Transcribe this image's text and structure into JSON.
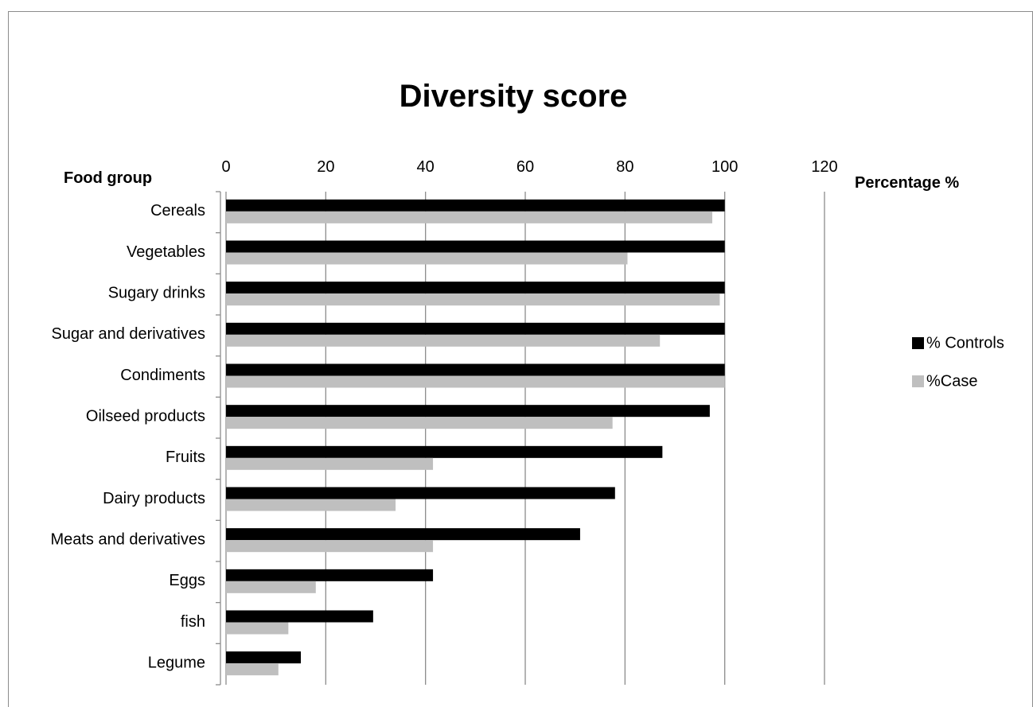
{
  "chart_data": {
    "type": "bar",
    "orientation": "horizontal",
    "title": "Diversity score",
    "xlabel": "Percentage %",
    "ylabel": "Food group",
    "xlim": [
      0,
      120
    ],
    "xticks": [
      0,
      20,
      40,
      60,
      80,
      100,
      120
    ],
    "grid": "vertical",
    "legend_position": "right",
    "categories": [
      "Cereals",
      "Vegetables",
      "Sugary drinks",
      "Sugar and derivatives",
      "Condiments",
      "Oilseed products",
      "Fruits",
      "Dairy products",
      "Meats and derivatives",
      "Eggs",
      "fish",
      "Legume"
    ],
    "series": [
      {
        "name": "% Controls",
        "color": "#000000",
        "values": [
          100,
          100,
          100,
          100,
          100,
          97,
          87.5,
          78,
          71,
          41.5,
          29.5,
          15
        ]
      },
      {
        "name": "%Case",
        "color": "#bfbfbf",
        "values": [
          97.5,
          80.5,
          99,
          87,
          100,
          77.5,
          41.5,
          34,
          41.5,
          18,
          12.5,
          10.5
        ]
      }
    ]
  }
}
